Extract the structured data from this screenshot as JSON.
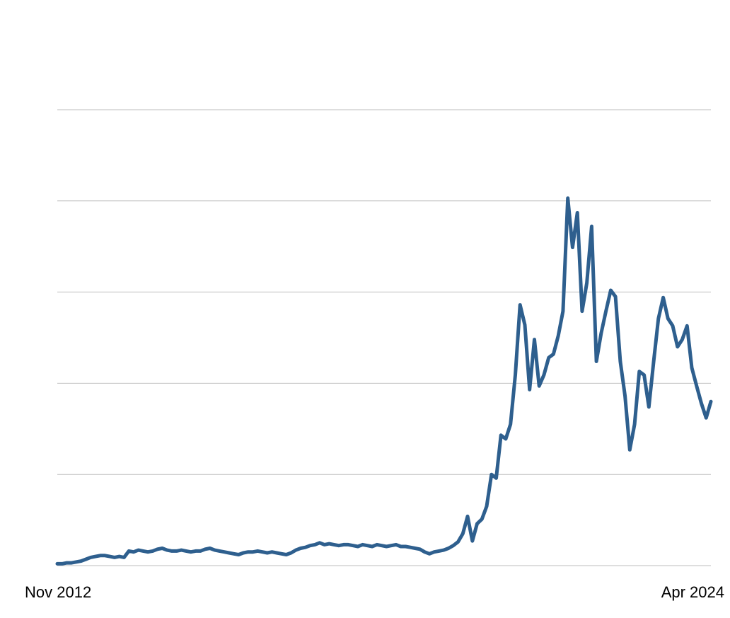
{
  "chart_data": {
    "type": "line",
    "x": [
      "2012-11",
      "2012-12",
      "2013-01",
      "2013-02",
      "2013-03",
      "2013-04",
      "2013-05",
      "2013-06",
      "2013-07",
      "2013-08",
      "2013-09",
      "2013-10",
      "2013-11",
      "2013-12",
      "2014-01",
      "2014-02",
      "2014-03",
      "2014-04",
      "2014-05",
      "2014-06",
      "2014-07",
      "2014-08",
      "2014-09",
      "2014-10",
      "2014-11",
      "2014-12",
      "2015-01",
      "2015-02",
      "2015-03",
      "2015-04",
      "2015-05",
      "2015-06",
      "2015-07",
      "2015-08",
      "2015-09",
      "2015-10",
      "2015-11",
      "2015-12",
      "2016-01",
      "2016-02",
      "2016-03",
      "2016-04",
      "2016-05",
      "2016-06",
      "2016-07",
      "2016-08",
      "2016-09",
      "2016-10",
      "2016-11",
      "2016-12",
      "2017-01",
      "2017-02",
      "2017-03",
      "2017-04",
      "2017-05",
      "2017-06",
      "2017-07",
      "2017-08",
      "2017-09",
      "2017-10",
      "2017-11",
      "2017-12",
      "2018-01",
      "2018-02",
      "2018-03",
      "2018-04",
      "2018-05",
      "2018-06",
      "2018-07",
      "2018-08",
      "2018-09",
      "2018-10",
      "2018-11",
      "2018-12",
      "2019-01",
      "2019-02",
      "2019-03",
      "2019-04",
      "2019-05",
      "2019-06",
      "2019-07",
      "2019-08",
      "2019-09",
      "2019-10",
      "2019-11",
      "2019-12",
      "2020-01",
      "2020-02",
      "2020-03",
      "2020-04",
      "2020-05",
      "2020-06",
      "2020-07",
      "2020-08",
      "2020-09",
      "2020-10",
      "2020-11",
      "2020-12",
      "2021-01",
      "2021-02",
      "2021-03",
      "2021-04",
      "2021-05",
      "2021-06",
      "2021-07",
      "2021-08",
      "2021-09",
      "2021-10",
      "2021-11",
      "2021-12",
      "2022-01",
      "2022-02",
      "2022-03",
      "2022-04",
      "2022-05",
      "2022-06",
      "2022-07",
      "2022-08",
      "2022-09",
      "2022-10",
      "2022-11",
      "2022-12",
      "2023-01",
      "2023-02",
      "2023-03",
      "2023-04",
      "2023-05",
      "2023-06",
      "2023-07",
      "2023-08",
      "2023-09",
      "2023-10",
      "2023-11",
      "2023-12",
      "2024-01",
      "2024-02",
      "2024-03",
      "2024-04"
    ],
    "series": [
      {
        "color": "#2e5f8e",
        "values": [
          0.02,
          0.02,
          0.03,
          0.03,
          0.04,
          0.05,
          0.07,
          0.09,
          0.1,
          0.11,
          0.11,
          0.1,
          0.09,
          0.1,
          0.09,
          0.16,
          0.15,
          0.17,
          0.16,
          0.15,
          0.16,
          0.18,
          0.19,
          0.17,
          0.16,
          0.16,
          0.17,
          0.16,
          0.15,
          0.16,
          0.16,
          0.18,
          0.19,
          0.17,
          0.16,
          0.15,
          0.14,
          0.13,
          0.12,
          0.14,
          0.15,
          0.15,
          0.16,
          0.15,
          0.14,
          0.15,
          0.14,
          0.13,
          0.12,
          0.14,
          0.17,
          0.19,
          0.2,
          0.22,
          0.23,
          0.25,
          0.23,
          0.24,
          0.23,
          0.22,
          0.23,
          0.23,
          0.22,
          0.21,
          0.23,
          0.22,
          0.21,
          0.23,
          0.22,
          0.21,
          0.22,
          0.23,
          0.21,
          0.21,
          0.2,
          0.19,
          0.18,
          0.15,
          0.13,
          0.15,
          0.16,
          0.17,
          0.19,
          0.22,
          0.26,
          0.35,
          0.54,
          0.27,
          0.46,
          0.51,
          0.65,
          1.0,
          0.96,
          1.43,
          1.39,
          1.55,
          2.09,
          2.86,
          2.64,
          1.93,
          2.48,
          1.97,
          2.09,
          2.28,
          2.32,
          2.52,
          2.79,
          4.03,
          3.49,
          3.87,
          2.79,
          3.1,
          3.72,
          2.24,
          2.55,
          2.79,
          3.02,
          2.95,
          2.24,
          1.86,
          1.27,
          1.55,
          2.13,
          2.09,
          1.74,
          2.24,
          2.71,
          2.94,
          2.71,
          2.63,
          2.4,
          2.48,
          2.63,
          2.17,
          1.97,
          1.78,
          1.62,
          1.8
        ]
      }
    ],
    "xticks": [
      {
        "value": "2012-11",
        "label": "Nov 2012"
      },
      {
        "value": "2024-04",
        "label": "Apr 2024"
      }
    ],
    "ylim": [
      0,
      5
    ],
    "yticks": [
      0,
      1,
      2,
      3,
      4,
      5
    ],
    "ytick_labels": false,
    "grid": true
  }
}
